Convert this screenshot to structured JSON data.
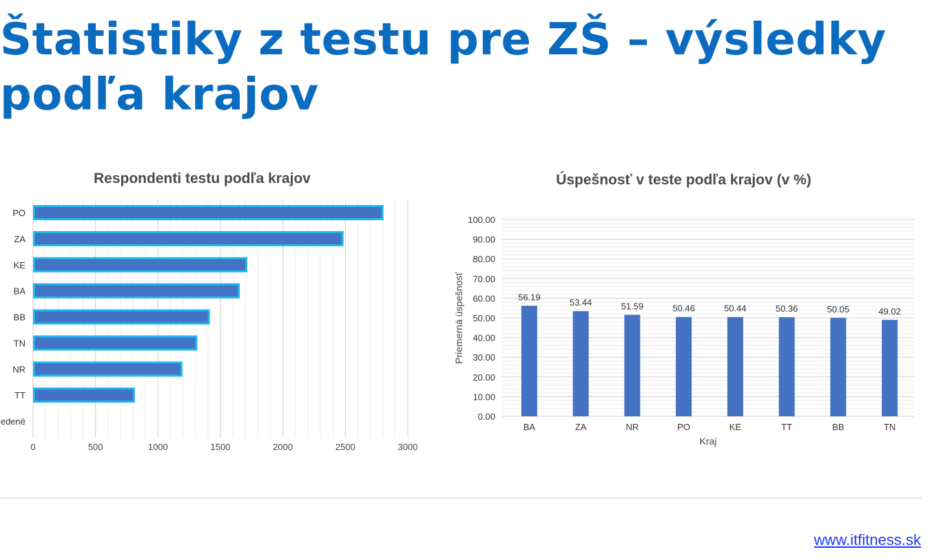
{
  "slide": {
    "title_line1": "Štatistiky z testu pre ZŠ – výsledky",
    "title_line2": "podľa krajov",
    "footer_link": "www.itfitness.sk"
  },
  "chart_data": [
    {
      "type": "bar",
      "orientation": "horizontal",
      "title": "Respondenti testu podľa krajov",
      "categories": [
        "PO",
        "ZA",
        "KE",
        "BA",
        "BB",
        "TN",
        "NR",
        "TT",
        "Neuvedené"
      ],
      "category_labels": [
        "PO",
        "ZA",
        "KE",
        "BA",
        "BB",
        "TN",
        "NR",
        "TT",
        "edené"
      ],
      "values": [
        2800,
        2480,
        1710,
        1650,
        1410,
        1310,
        1190,
        810,
        0
      ],
      "xlim": [
        0,
        3000
      ],
      "xticks": [
        0,
        500,
        1000,
        1500,
        2000,
        2500,
        3000
      ],
      "grid": "vertical",
      "bar_color": "#4472c4",
      "bar_outline": "#1fb6ee"
    },
    {
      "type": "bar",
      "title": "Úspešnosť v teste podľa krajov (v %)",
      "categories": [
        "BA",
        "ZA",
        "NR",
        "PO",
        "KE",
        "TT",
        "BB",
        "TN"
      ],
      "values": [
        56.19,
        53.44,
        51.59,
        50.46,
        50.44,
        50.36,
        50.05,
        49.02
      ],
      "value_labels": [
        "56.19",
        "53.44",
        "51.59",
        "50.46",
        "50.44",
        "50.36",
        "50.05",
        "49.02"
      ],
      "xlabel": "Kraj",
      "ylabel": "Priemerná úspešnosť",
      "ylim": [
        0,
        100
      ],
      "yticks": [
        "0.00",
        "10.00",
        "20.00",
        "30.00",
        "40.00",
        "50.00",
        "60.00",
        "70.00",
        "80.00",
        "90.00",
        "100.00"
      ],
      "grid": "horizontal",
      "bar_color": "#4472c4"
    }
  ]
}
